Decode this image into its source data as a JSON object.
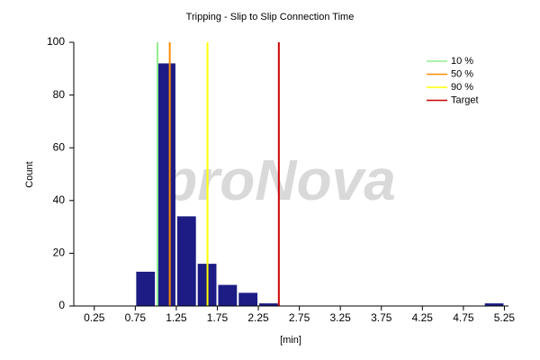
{
  "chart_data": {
    "type": "histogram",
    "title": "Tripping - Slip to Slip Connection Time",
    "x_label": "[min]",
    "y_label": "Count",
    "watermark": "proNova",
    "bins": [
      0.75,
      1.0,
      1.25,
      1.5,
      1.75,
      2.0,
      2.25,
      2.5,
      2.75,
      3.0,
      3.25,
      3.5,
      3.75,
      4.0,
      4.25,
      4.5,
      4.75,
      5.0,
      5.25
    ],
    "counts": [
      13,
      92,
      34,
      16,
      8,
      5,
      1,
      0,
      0,
      0,
      0,
      0,
      0,
      0,
      0,
      0,
      0,
      1
    ],
    "color": "#1c1c84",
    "xlim": [
      0,
      5.3
    ],
    "xticks": [
      0.25,
      0.75,
      1.25,
      1.75,
      2.25,
      2.75,
      3.25,
      3.75,
      4.25,
      4.75,
      5.25
    ],
    "ylim": [
      0,
      100
    ],
    "yticks": [
      0,
      20,
      40,
      60,
      80,
      100
    ],
    "reference_lines": [
      {
        "name": "10 %",
        "color": "#90ee90",
        "x": 1.02
      },
      {
        "name": "50 %",
        "color": "#ff8c00",
        "x": 1.17
      },
      {
        "name": "90 %",
        "color": "#ffff00",
        "x": 1.63
      },
      {
        "name": "Target",
        "color": "#cc0000",
        "x": 2.5
      }
    ],
    "legend": "top-right"
  }
}
